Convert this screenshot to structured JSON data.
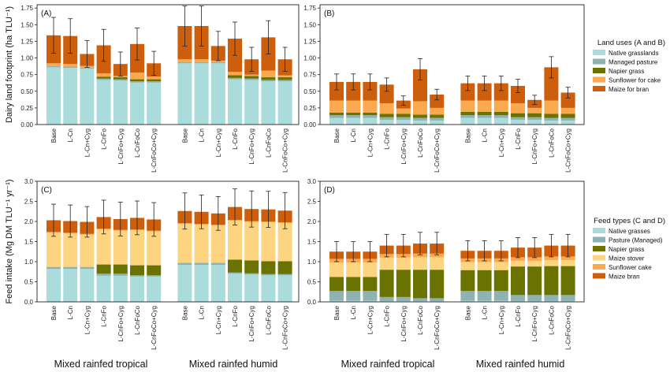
{
  "colors": {
    "native": "#aadcdc",
    "pasture": "#8fb2b2",
    "napier": "#6b7300",
    "stover": "#fdd581",
    "sunflower": "#fba94e",
    "bran": "#cd5f0c",
    "axis": "#222222"
  },
  "group_labels": [
    "Mixed rainfed tropical",
    "Mixed rainfed humid"
  ],
  "legends": [
    {
      "title": "Land uses (A and B)",
      "items": [
        {
          "name": "Native grasslands",
          "color": "#aadcdc"
        },
        {
          "name": "Managed pasture",
          "color": "#8fb2b2"
        },
        {
          "name": "Napier grass",
          "color": "#6b7300"
        },
        {
          "name": "Sunflower for cake",
          "color": "#fba94e"
        },
        {
          "name": "Maize for bran",
          "color": "#cd5f0c"
        }
      ]
    },
    {
      "title": "Feed types (C and D)",
      "items": [
        {
          "name": "Native grasses",
          "color": "#aadcdc"
        },
        {
          "name": "Pasture (Managed)",
          "color": "#8fb2b2"
        },
        {
          "name": "Napier grass",
          "color": "#6b7300"
        },
        {
          "name": "Maize stover",
          "color": "#fdd581"
        },
        {
          "name": "Sunflower cake",
          "color": "#fba94e"
        },
        {
          "name": "Maize bran",
          "color": "#cd5f0c"
        }
      ]
    }
  ],
  "chart_data": [
    {
      "panel": "(A)",
      "type": "bar",
      "stacked": true,
      "ylabel": "Dairy land footprint (ha TLU⁻¹)",
      "ylim": [
        0,
        1.8
      ],
      "yticks": [
        "0.00",
        "0.25",
        "0.50",
        "0.75",
        "1.00",
        "1.25",
        "1.50",
        "1.75"
      ],
      "categories": [
        "Base",
        "L-Cn",
        "L-Cn+Cyg",
        "L-CnFo",
        "L-CnFo+Cyg",
        "L-CnFoCo",
        "L-CnFoCo+Cyg",
        "Base",
        "L-Cn",
        "L-Cn+Cyg",
        "L-CnFo",
        "L-CnFo+Cyg",
        "L-CnFoCo",
        "L-CnFoCo+Cyg"
      ],
      "series": [
        {
          "name": "Native grasslands",
          "values": [
            0.86,
            0.85,
            0.84,
            0.67,
            0.66,
            0.63,
            0.63,
            0.92,
            0.92,
            0.92,
            0.68,
            0.67,
            0.65,
            0.65
          ]
        },
        {
          "name": "Managed pasture",
          "values": [
            0.02,
            0.02,
            0.02,
            0.02,
            0.02,
            0.02,
            0.02,
            0.02,
            0.02,
            0.02,
            0.02,
            0.02,
            0.02,
            0.02
          ]
        },
        {
          "name": "Napier grass",
          "values": [
            0,
            0,
            0,
            0.03,
            0.03,
            0.03,
            0.03,
            0,
            0,
            0,
            0.04,
            0.04,
            0.04,
            0.04
          ]
        },
        {
          "name": "Sunflower for cake",
          "values": [
            0.04,
            0.04,
            0.02,
            0.05,
            0.02,
            0.1,
            0.04,
            0.04,
            0.04,
            0.02,
            0.05,
            0.02,
            0.1,
            0.03
          ]
        },
        {
          "name": "Maize for bran",
          "values": [
            0.42,
            0.42,
            0.18,
            0.42,
            0.18,
            0.43,
            0.2,
            0.5,
            0.5,
            0.22,
            0.5,
            0.23,
            0.5,
            0.24
          ]
        }
      ],
      "errors": [
        0.27,
        0.26,
        0.2,
        0.24,
        0.18,
        0.24,
        0.18,
        0.3,
        0.3,
        0.22,
        0.25,
        0.18,
        0.25,
        0.18
      ]
    },
    {
      "panel": "(B)",
      "type": "bar",
      "stacked": true,
      "ylabel": "",
      "ylim": [
        0,
        1.8
      ],
      "yticks": [
        "0.00",
        "0.25",
        "0.50",
        "0.75",
        "1.00",
        "1.25",
        "1.50",
        "1.75"
      ],
      "categories": [
        "Base",
        "L-Cn",
        "L-Cn+Cyg",
        "L-CnFo",
        "L-CnFo+Cyg",
        "L-CnFoCo",
        "L-CnFoCo+Cyg",
        "Base",
        "L-Cn",
        "L-Cn+Cyg",
        "L-CnFo",
        "L-CnFo+Cyg",
        "L-CnFoCo",
        "L-CnFoCo+Cyg"
      ],
      "series": [
        {
          "name": "Native grasslands",
          "values": [
            0.1,
            0.1,
            0.1,
            0.07,
            0.07,
            0.06,
            0.06,
            0.1,
            0.1,
            0.1,
            0.07,
            0.07,
            0.06,
            0.06
          ]
        },
        {
          "name": "Managed pasture",
          "values": [
            0.04,
            0.04,
            0.04,
            0.04,
            0.04,
            0.04,
            0.04,
            0.04,
            0.04,
            0.04,
            0.04,
            0.04,
            0.04,
            0.04
          ]
        },
        {
          "name": "Napier grass",
          "values": [
            0.04,
            0.04,
            0.04,
            0.05,
            0.05,
            0.05,
            0.05,
            0.05,
            0.05,
            0.05,
            0.06,
            0.06,
            0.06,
            0.06
          ]
        },
        {
          "name": "Sunflower for cake",
          "values": [
            0.18,
            0.18,
            0.18,
            0.16,
            0.08,
            0.2,
            0.1,
            0.17,
            0.17,
            0.17,
            0.15,
            0.08,
            0.2,
            0.09
          ]
        },
        {
          "name": "Maize for bran",
          "values": [
            0.28,
            0.28,
            0.28,
            0.28,
            0.12,
            0.48,
            0.2,
            0.26,
            0.26,
            0.26,
            0.26,
            0.12,
            0.5,
            0.23
          ]
        }
      ],
      "errors": [
        0.12,
        0.12,
        0.12,
        0.1,
        0.07,
        0.16,
        0.08,
        0.11,
        0.11,
        0.11,
        0.1,
        0.07,
        0.16,
        0.08
      ]
    },
    {
      "panel": "(C)",
      "type": "bar",
      "stacked": true,
      "ylabel": "Feed intake (Mg DM TLU⁻¹ yr⁻¹)",
      "ylim": [
        0,
        3.0
      ],
      "yticks": [
        "0.0",
        "0.5",
        "1.0",
        "1.5",
        "2.0",
        "2.5",
        "3.0"
      ],
      "categories": [
        "Base",
        "L-Cn",
        "L-Cn+Cyg",
        "L-CnFo",
        "L-CnFo+Cyg",
        "L-CnFoCo",
        "L-CnFoCo+Cyg",
        "Base",
        "L-Cn",
        "L-Cn+Cyg",
        "L-CnFo",
        "L-CnFo+Cyg",
        "L-CnFoCo",
        "L-CnFoCo+Cyg"
      ],
      "series": [
        {
          "name": "Native grasses",
          "values": [
            0.82,
            0.82,
            0.82,
            0.65,
            0.65,
            0.63,
            0.63,
            0.92,
            0.92,
            0.92,
            0.7,
            0.68,
            0.66,
            0.66
          ]
        },
        {
          "name": "Pasture (Managed)",
          "values": [
            0.05,
            0.05,
            0.05,
            0.05,
            0.05,
            0.03,
            0.03,
            0.05,
            0.05,
            0.05,
            0.03,
            0.03,
            0.03,
            0.03
          ]
        },
        {
          "name": "Napier grass",
          "values": [
            0,
            0,
            0,
            0.23,
            0.23,
            0.25,
            0.25,
            0,
            0,
            0,
            0.32,
            0.32,
            0.32,
            0.32
          ]
        },
        {
          "name": "Maize stover",
          "values": [
            0.85,
            0.83,
            0.8,
            0.87,
            0.84,
            0.87,
            0.84,
            0.97,
            0.95,
            0.93,
            0.97,
            0.96,
            0.97,
            0.95
          ]
        },
        {
          "name": "Sunflower cake",
          "values": [
            0.02,
            0.02,
            0.02,
            0.02,
            0.02,
            0.02,
            0.02,
            0.02,
            0.02,
            0.02,
            0.02,
            0.02,
            0.02,
            0.02
          ]
        },
        {
          "name": "Maize bran",
          "values": [
            0.29,
            0.29,
            0.3,
            0.29,
            0.27,
            0.29,
            0.28,
            0.3,
            0.3,
            0.28,
            0.32,
            0.3,
            0.3,
            0.29
          ]
        }
      ],
      "errors": [
        0.4,
        0.4,
        0.38,
        0.42,
        0.42,
        0.42,
        0.42,
        0.45,
        0.42,
        0.42,
        0.45,
        0.45,
        0.45,
        0.45
      ]
    },
    {
      "panel": "(D)",
      "type": "bar",
      "stacked": true,
      "ylabel": "",
      "ylim": [
        0,
        3.0
      ],
      "yticks": [
        "0.0",
        "0.5",
        "1.0",
        "1.5",
        "2.0",
        "2.5",
        "3.0"
      ],
      "categories": [
        "Base",
        "L-Cn",
        "L-Cn+Cyg",
        "L-CnFo",
        "L-CnFo+Cyg",
        "L-CnFoCo",
        "L-CnFoCo+Cyg",
        "Base",
        "L-Cn",
        "L-Cn+Cyg",
        "L-CnFo",
        "L-CnFo+Cyg",
        "L-CnFoCo",
        "L-CnFoCo+Cyg"
      ],
      "series": [
        {
          "name": "Native grasses",
          "values": [
            0.03,
            0.03,
            0.03,
            0.02,
            0.02,
            0.02,
            0.02,
            0.03,
            0.03,
            0.03,
            0.02,
            0.02,
            0.02,
            0.02
          ]
        },
        {
          "name": "Pasture (Managed)",
          "values": [
            0.24,
            0.24,
            0.24,
            0.1,
            0.1,
            0.07,
            0.07,
            0.24,
            0.24,
            0.24,
            0.15,
            0.15,
            0.15,
            0.15
          ]
        },
        {
          "name": "Napier grass",
          "values": [
            0.35,
            0.35,
            0.35,
            0.68,
            0.68,
            0.71,
            0.71,
            0.52,
            0.52,
            0.52,
            0.71,
            0.71,
            0.72,
            0.72
          ]
        },
        {
          "name": "Maize stover",
          "values": [
            0.36,
            0.36,
            0.36,
            0.3,
            0.3,
            0.31,
            0.31,
            0.2,
            0.2,
            0.2,
            0.14,
            0.14,
            0.15,
            0.15
          ]
        },
        {
          "name": "Sunflower cake",
          "values": [
            0.09,
            0.09,
            0.09,
            0.09,
            0.09,
            0.09,
            0.09,
            0.09,
            0.09,
            0.09,
            0.09,
            0.09,
            0.09,
            0.09
          ]
        },
        {
          "name": "Maize bran",
          "values": [
            0.18,
            0.18,
            0.18,
            0.21,
            0.21,
            0.25,
            0.25,
            0.19,
            0.19,
            0.19,
            0.24,
            0.24,
            0.27,
            0.27
          ]
        }
      ],
      "errors": [
        0.25,
        0.25,
        0.25,
        0.28,
        0.28,
        0.28,
        0.28,
        0.25,
        0.25,
        0.25,
        0.25,
        0.25,
        0.28,
        0.28
      ]
    }
  ]
}
